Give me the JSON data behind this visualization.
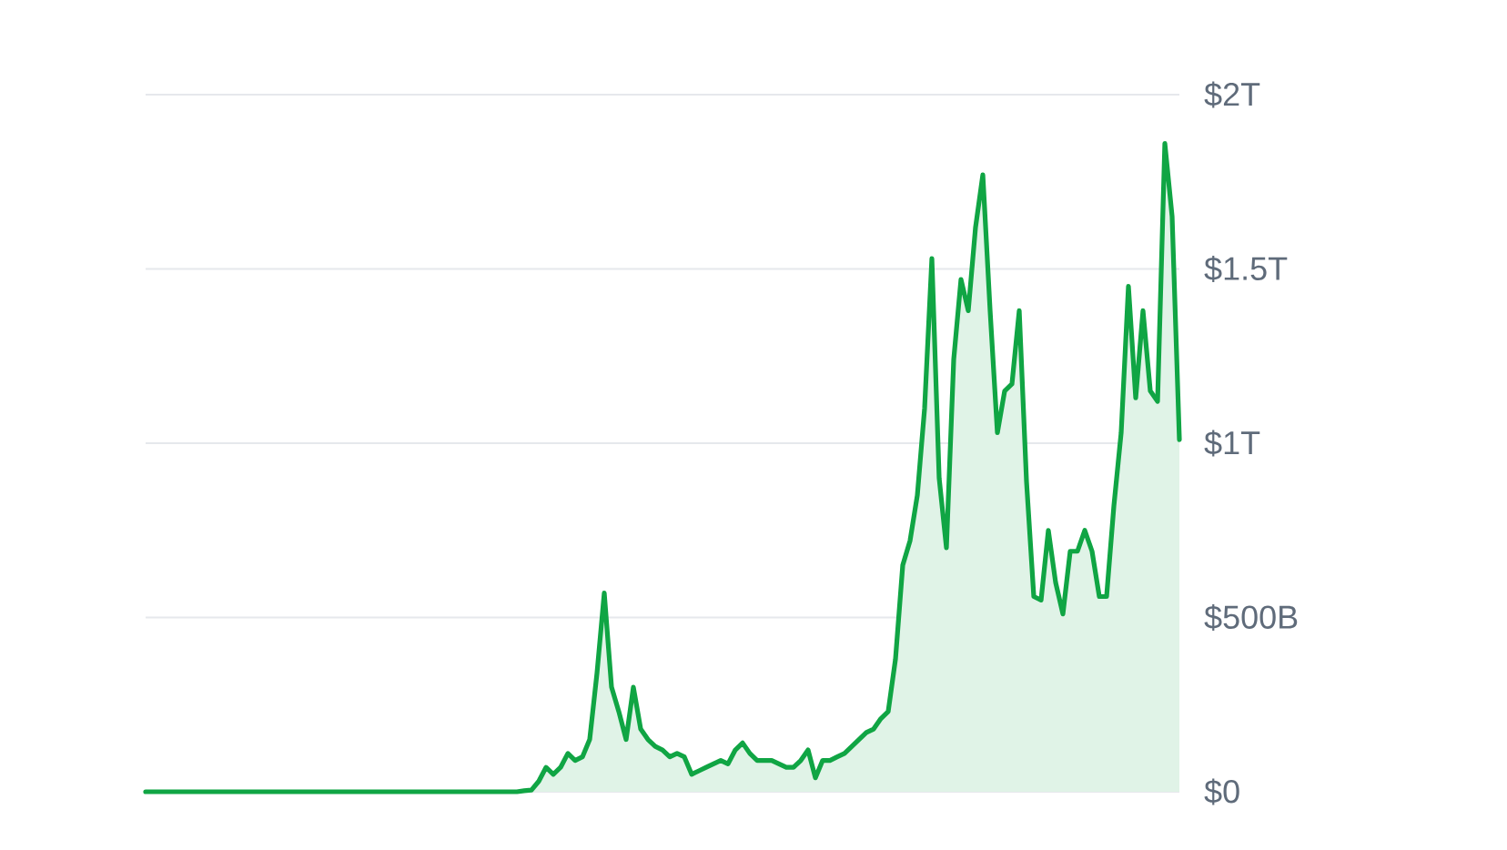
{
  "chart_data": {
    "type": "area",
    "categories": [
      null,
      null,
      null,
      null,
      null,
      null,
      null,
      null,
      null,
      null,
      null,
      null,
      null,
      null,
      null,
      null,
      null,
      null,
      null,
      null,
      null,
      null,
      null,
      null,
      null,
      null,
      null,
      null,
      null,
      null,
      null,
      null,
      null,
      null,
      null,
      null,
      null,
      null,
      null,
      null,
      null,
      null,
      null,
      null,
      null,
      null,
      null,
      null,
      null,
      null,
      null,
      null,
      null,
      null,
      null,
      null,
      null,
      null,
      null,
      null,
      null,
      null,
      null,
      null,
      null,
      null,
      null,
      null,
      null,
      null,
      null,
      null,
      null,
      null,
      null,
      null,
      null,
      null,
      null,
      null,
      null,
      null,
      null,
      null,
      null,
      null,
      null,
      null,
      null,
      null,
      null,
      null,
      null,
      null,
      null,
      null,
      null,
      null,
      null,
      null,
      null,
      null,
      null,
      null,
      null,
      null,
      null,
      null,
      null,
      null,
      null,
      null,
      null,
      null,
      null,
      null,
      null,
      null,
      null,
      null,
      null,
      null,
      null,
      null,
      null,
      null,
      null,
      null,
      null,
      null,
      null,
      null,
      null,
      null,
      null,
      null,
      null,
      null,
      null,
      null,
      null,
      null,
      null
    ],
    "values": [
      0,
      0,
      0,
      0,
      0,
      0,
      0,
      0,
      0,
      0,
      0,
      0,
      0,
      0,
      0,
      0,
      0,
      0,
      0,
      0,
      0,
      0,
      0,
      0,
      0,
      0,
      0,
      0,
      0,
      0,
      0,
      0,
      0,
      0,
      0,
      0,
      0,
      0,
      0,
      0,
      0,
      0,
      0,
      0,
      0,
      0,
      0,
      0,
      0,
      0,
      0,
      0,
      3000000000.0,
      5000000000.0,
      30000000000.0,
      70000000000.0,
      50000000000.0,
      70000000000.0,
      110000000000.0,
      90000000000.0,
      100000000000.0,
      150000000000.0,
      340000000000.0,
      570000000000.0,
      300000000000.0,
      230000000000.0,
      150000000000.0,
      300000000000.0,
      180000000000.0,
      150000000000.0,
      130000000000.0,
      120000000000.0,
      100000000000.0,
      110000000000.0,
      100000000000.0,
      50000000000.0,
      60000000000.0,
      70000000000.0,
      80000000000.0,
      90000000000.0,
      80000000000.0,
      120000000000.0,
      140000000000.0,
      110000000000.0,
      90000000000.0,
      90000000000.0,
      90000000000.0,
      80000000000.0,
      70000000000.0,
      70000000000.0,
      90000000000.0,
      120000000000.0,
      40000000000.0,
      90000000000.0,
      90000000000.0,
      100000000000.0,
      110000000000.0,
      130000000000.0,
      150000000000.0,
      170000000000.0,
      180000000000.0,
      210000000000.0,
      230000000000.0,
      380000000000.0,
      650000000000.0,
      720000000000.0,
      850000000000.0,
      1100000000000.0,
      1530000000000.0,
      900000000000.0,
      700000000000.0,
      1240000000000.0,
      1470000000000.0,
      1380000000000.0,
      1620000000000.0,
      1770000000000.0,
      1380000000000.0,
      1030000000000.0,
      1150000000000.0,
      1170000000000.0,
      1380000000000.0,
      890000000000.0,
      560000000000.0,
      550000000000.0,
      750000000000.0,
      600000000000.0,
      510000000000.0,
      690000000000.0,
      690000000000.0,
      750000000000.0,
      690000000000.0,
      560000000000.0,
      560000000000.0,
      820000000000.0,
      1030000000000.0,
      1450000000000.0,
      1130000000000.0,
      1380000000000.0,
      1150000000000.0,
      1120000000000.0,
      1860000000000.0,
      1650000000000.0,
      1010000000000.0
    ],
    "color": "#10a544",
    "ylim": [
      0,
      2000000000000.0
    ],
    "yticks": [
      {
        "value": 0,
        "label": "$0"
      },
      {
        "value": 500000000000.0,
        "label": "$500B"
      },
      {
        "value": 1000000000000.0,
        "label": "$1T"
      },
      {
        "value": 1500000000000.0,
        "label": "$1.5T"
      },
      {
        "value": 2000000000000.0,
        "label": "$2T"
      }
    ],
    "grid": "y",
    "tick_labels": "y"
  }
}
